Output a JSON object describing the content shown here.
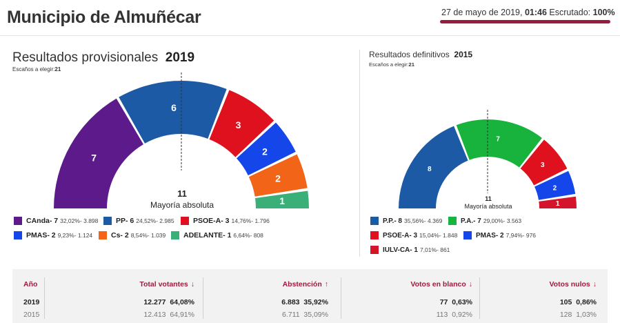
{
  "header": {
    "title": "Municipio de Almuñécar",
    "date": "27 de mayo de 2019, ",
    "time": "01:46",
    "scrutiny_label": " Escrutado: ",
    "scrutiny_value": "100%"
  },
  "left": {
    "title": "Resultados provisionales",
    "year": "2019",
    "seats_label": "Escaños a elegir:",
    "seats_value": "21",
    "majority_number": "11",
    "majority_label": "Mayoría absoluta",
    "arcs": [
      {
        "party": "CAnda",
        "seats": 7,
        "label": "7",
        "color": "#5c1a8a"
      },
      {
        "party": "PP",
        "seats": 6,
        "label": "6",
        "color": "#1d5aa5"
      },
      {
        "party": "PSOE-A",
        "seats": 3,
        "label": "3",
        "color": "#e0111f"
      },
      {
        "party": "PMAS",
        "seats": 2,
        "label": "2",
        "color": "#1446ea"
      },
      {
        "party": "Cs",
        "seats": 2,
        "label": "2",
        "color": "#f26417"
      },
      {
        "party": "ADELANTE",
        "seats": 1,
        "label": "1",
        "color": "#3aaf78"
      }
    ],
    "legend": [
      {
        "name": "CAnda- 7",
        "detail": "32,02%- 3.898",
        "color": "#5c1a8a"
      },
      {
        "name": "PP- 6",
        "detail": "24,52%- 2.985",
        "color": "#1d5aa5"
      },
      {
        "name": "PSOE-A- 3",
        "detail": "14,76%- 1.796",
        "color": "#e0111f"
      },
      {
        "name": "PMAS- 2",
        "detail": "9,23%- 1.124",
        "color": "#1446ea"
      },
      {
        "name": "Cs- 2",
        "detail": "8,54%- 1.039",
        "color": "#f26417"
      },
      {
        "name": "ADELANTE- 1",
        "detail": "6,64%- 808",
        "color": "#3aaf78"
      }
    ]
  },
  "right": {
    "title": "Resultados definitivos",
    "year": "2015",
    "seats_label": "Escaños a elegir:",
    "seats_value": "21",
    "majority_number": "11",
    "majority_label": "Mayoría absoluta",
    "arcs": [
      {
        "party": "P.P.",
        "seats": 8,
        "label": "8",
        "color": "#1d5aa5"
      },
      {
        "party": "P.A.",
        "seats": 7,
        "label": "7",
        "color": "#17b33c"
      },
      {
        "party": "PSOE-A",
        "seats": 3,
        "label": "3",
        "color": "#e0111f"
      },
      {
        "party": "PMAS",
        "seats": 2,
        "label": "2",
        "color": "#1446ea"
      },
      {
        "party": "IULV-CA",
        "seats": 1,
        "label": "1",
        "color": "#d4142a"
      }
    ],
    "legend": [
      {
        "name": "P.P.- 8",
        "detail": "35,56%- 4.369",
        "color": "#1d5aa5"
      },
      {
        "name": "P.A.- 7",
        "detail": "29,00%- 3.563",
        "color": "#17b33c"
      },
      {
        "name": "PSOE-A- 3",
        "detail": "15,04%- 1.848",
        "color": "#e0111f"
      },
      {
        "name": "PMAS- 2",
        "detail": "7,94%- 976",
        "color": "#1446ea"
      },
      {
        "name": "IULV-CA- 1",
        "detail": "7,01%- 861",
        "color": "#d4142a"
      }
    ]
  },
  "table": {
    "headers": {
      "year": "Año",
      "voters": "Total votantes",
      "abstention": "Abstención",
      "blank": "Votos en blanco",
      "null": "Votos nulos"
    },
    "arrows": {
      "down": "↓",
      "up": "↑"
    },
    "rows": [
      {
        "year": "2019",
        "voters": "12.277",
        "voters_pct": "64,08%",
        "abstention": "6.883",
        "abstention_pct": "35,92%",
        "blank": "77",
        "blank_pct": "0,63%",
        "null": "105",
        "null_pct": "0,86%"
      },
      {
        "year": "2015",
        "voters": "12.413",
        "voters_pct": "64,91%",
        "abstention": "6.711",
        "abstention_pct": "35,09%",
        "blank": "113",
        "blank_pct": "0,92%",
        "null": "128",
        "null_pct": "1,03%"
      }
    ]
  }
}
